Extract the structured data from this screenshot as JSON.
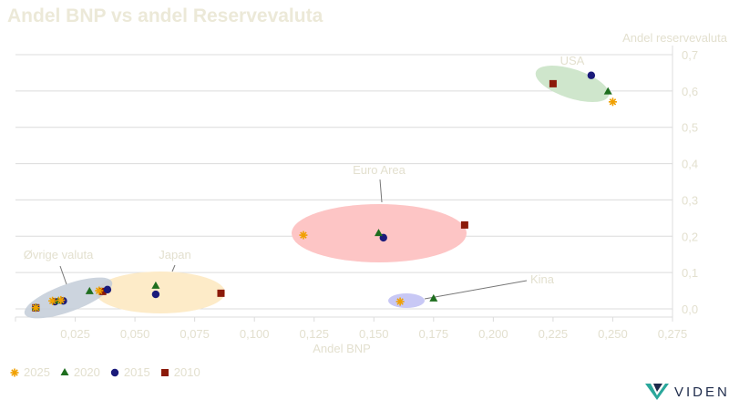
{
  "chart_data": {
    "type": "scatter",
    "title": "Andel BNP vs andel Reservevaluta",
    "xlabel": "Andel BNP",
    "ylabel": "Andel reservevaluta",
    "xlim": [
      0,
      0.275
    ],
    "ylim": [
      0,
      0.7
    ],
    "xticks": [
      "0,025",
      "0,050",
      "0,075",
      "0,100",
      "0,125",
      "0,150",
      "0,175",
      "0,200",
      "0,225",
      "0,250",
      "0,275"
    ],
    "yticks": [
      "0,0",
      "0,1",
      "0,2",
      "0,3",
      "0,4",
      "0,5",
      "0,6",
      "0,7"
    ],
    "grid": "horizontal",
    "legend_position": "bottom-left",
    "series": [
      {
        "name": "2025",
        "marker": "star",
        "color": "#f0a000",
        "points": [
          [
            0.25,
            0.57
          ],
          [
            0.1205,
            0.203
          ],
          [
            0.161,
            0.02
          ],
          [
            0.035,
            0.05
          ],
          [
            0.0155,
            0.022
          ],
          [
            0.019,
            0.024
          ],
          [
            0.0085,
            0.003
          ]
        ]
      },
      {
        "name": "2020",
        "marker": "triangle",
        "color": "#1e6e1e",
        "points": [
          [
            0.248,
            0.598
          ],
          [
            0.152,
            0.208
          ],
          [
            0.175,
            0.028
          ],
          [
            0.0587,
            0.063
          ],
          [
            0.031,
            0.048
          ],
          [
            0.018,
            0.022
          ],
          [
            0.0085,
            0.003
          ]
        ]
      },
      {
        "name": "2015",
        "marker": "circle",
        "color": "#1a1a7a",
        "points": [
          [
            0.241,
            0.643
          ],
          [
            0.154,
            0.196
          ],
          [
            0.0587,
            0.04
          ],
          [
            0.0385,
            0.053
          ],
          [
            0.0165,
            0.02
          ],
          [
            0.02,
            0.022
          ],
          [
            0.0085,
            0.003
          ]
        ]
      },
      {
        "name": "2010",
        "marker": "square",
        "color": "#8b1a0a",
        "points": [
          [
            0.225,
            0.62
          ],
          [
            0.188,
            0.231
          ],
          [
            0.086,
            0.043
          ],
          [
            0.0365,
            0.048
          ],
          [
            0.0085,
            0.003
          ]
        ]
      }
    ],
    "annotations": [
      "USA",
      "Euro Area",
      "Kina",
      "Japan",
      "Øvrige valuta"
    ]
  },
  "logo": {
    "text": "VIDEN"
  }
}
